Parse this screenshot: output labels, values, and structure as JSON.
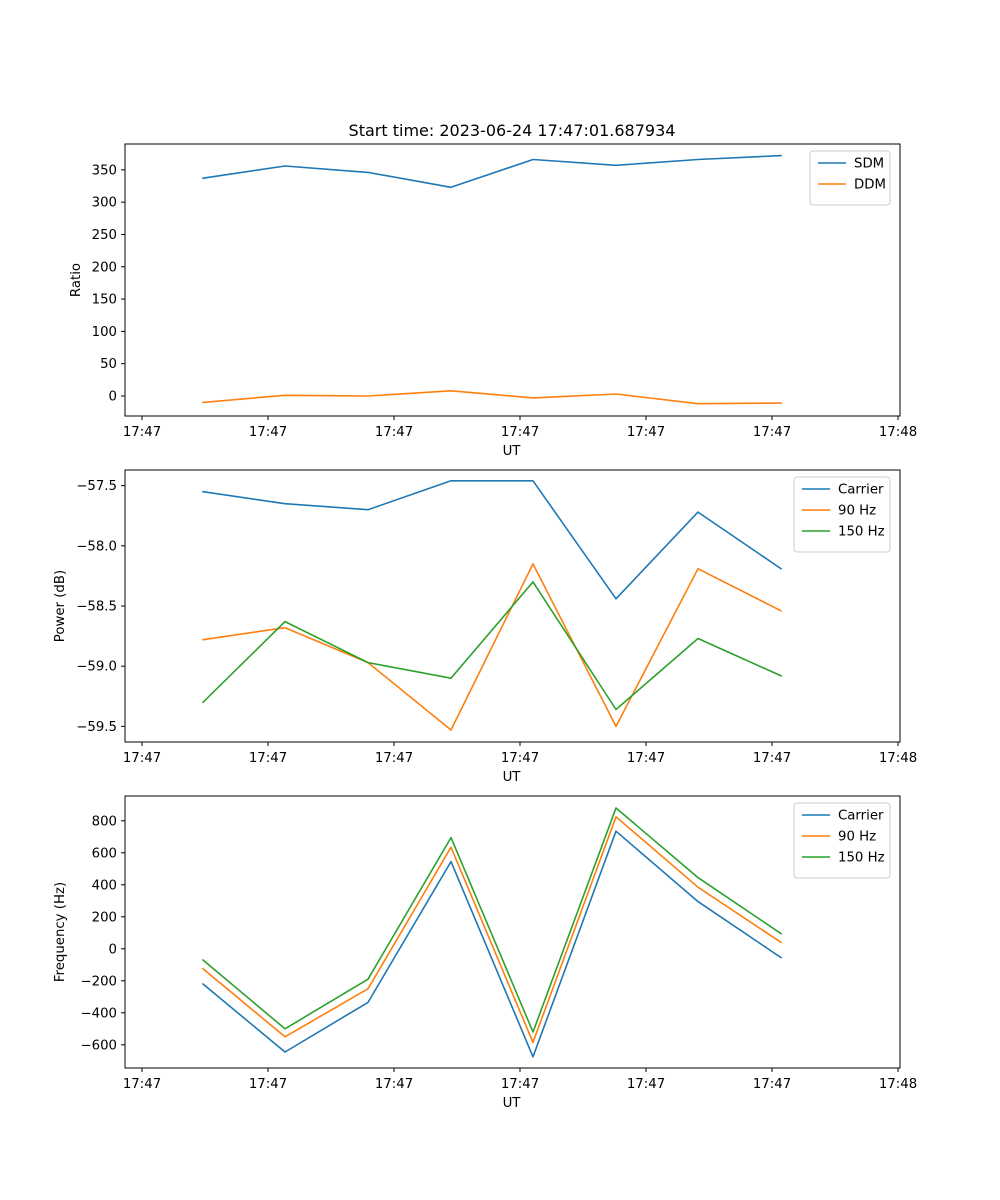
{
  "figure": {
    "title": "Start time: 2023-06-24 17:47:01.687934"
  },
  "chart_data": [
    {
      "type": "line",
      "title": "Start time: 2023-06-24 17:47:01.687934",
      "xlabel": "UT",
      "ylabel": "Ratio",
      "x_tick_labels": [
        "17:47",
        "17:47",
        "17:47",
        "17:47",
        "17:47",
        "17:47",
        "17:48"
      ],
      "y_ticks": [
        0,
        50,
        100,
        150,
        200,
        250,
        300,
        350
      ],
      "ylim": [
        -31,
        390
      ],
      "legend_position": "upper right",
      "series": [
        {
          "name": "SDM",
          "color": "#1f77b4",
          "values": [
            337,
            356,
            346,
            323,
            366,
            357,
            366,
            372
          ]
        },
        {
          "name": "DDM",
          "color": "#ff7f0e",
          "values": [
            -10,
            1,
            0,
            8,
            -3,
            3,
            -12,
            -11
          ]
        }
      ]
    },
    {
      "type": "line",
      "title": "",
      "xlabel": "UT",
      "ylabel": "Power (dB)",
      "x_tick_labels": [
        "17:47",
        "17:47",
        "17:47",
        "17:47",
        "17:47",
        "17:47",
        "17:48"
      ],
      "y_ticks": [
        -57.5,
        -58.0,
        -58.5,
        -59.0,
        -59.5
      ],
      "y_tick_labels": [
        "−57.5",
        "−58.0",
        "−58.5",
        "−59.0",
        "−59.5"
      ],
      "ylim": [
        -59.63,
        -57.37
      ],
      "legend_position": "upper right",
      "series": [
        {
          "name": "Carrier",
          "color": "#1f77b4",
          "values": [
            -57.55,
            -57.65,
            -57.7,
            -57.46,
            -57.46,
            -58.44,
            -57.72,
            -58.19
          ]
        },
        {
          "name": "90 Hz",
          "color": "#ff7f0e",
          "values": [
            -58.78,
            -58.68,
            -58.97,
            -59.53,
            -58.15,
            -59.5,
            -58.19,
            -58.54
          ]
        },
        {
          "name": "150 Hz",
          "color": "#2ca02c",
          "values": [
            -59.3,
            -58.63,
            -58.97,
            -59.1,
            -58.3,
            -59.36,
            -58.77,
            -59.08
          ]
        }
      ]
    },
    {
      "type": "line",
      "title": "",
      "xlabel": "UT",
      "ylabel": "Frequency (Hz)",
      "x_tick_labels": [
        "17:47",
        "17:47",
        "17:47",
        "17:47",
        "17:47",
        "17:47",
        "17:48"
      ],
      "y_ticks": [
        800,
        600,
        400,
        200,
        0,
        -200,
        -400,
        -600
      ],
      "y_tick_labels": [
        "800",
        "600",
        "400",
        "200",
        "0",
        "−200",
        "−400",
        "−600"
      ],
      "ylim": [
        -745,
        955
      ],
      "legend_position": "upper right",
      "series": [
        {
          "name": "Carrier",
          "color": "#1f77b4",
          "values": [
            -220,
            -645,
            -335,
            545,
            -675,
            735,
            295,
            -55
          ]
        },
        {
          "name": "90 Hz",
          "color": "#ff7f0e",
          "values": [
            -125,
            -550,
            -250,
            635,
            -585,
            825,
            385,
            40
          ]
        },
        {
          "name": "150 Hz",
          "color": "#2ca02c",
          "values": [
            -70,
            -500,
            -190,
            695,
            -520,
            880,
            445,
            95
          ]
        }
      ]
    }
  ]
}
